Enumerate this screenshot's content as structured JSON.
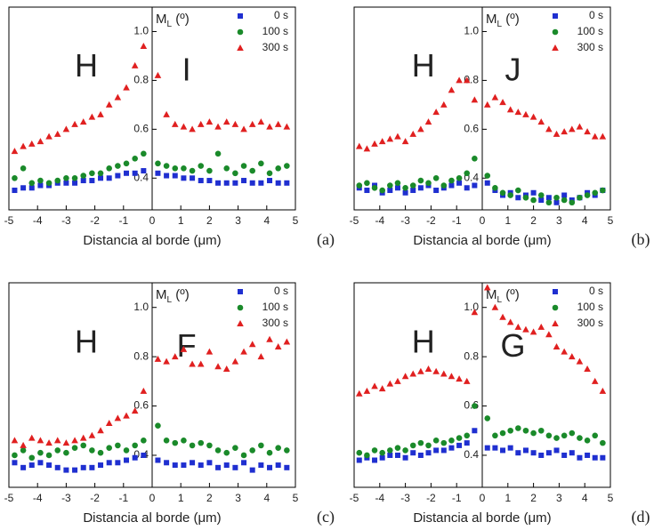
{
  "chart_data": [
    {
      "type": "scatter",
      "panel_label": "(a)",
      "annotations": [
        "H",
        "I"
      ],
      "xlabel": "Distancia al borde (μm)",
      "ylabel": {
        "main": "M",
        "sub": "L",
        "unit": " (º)"
      },
      "xlim": [
        -5,
        5
      ],
      "ylim": [
        0.27,
        1.1
      ],
      "xticks": [
        -5,
        -4,
        -3,
        -2,
        -1,
        0,
        1,
        2,
        3,
        4,
        5
      ],
      "yticks": [
        0.4,
        0.6,
        0.8,
        {
          "value": 1,
          "label": "1.0"
        }
      ],
      "legend": "upper right",
      "x": [
        -4.8,
        -4.5,
        -4.2,
        -3.9,
        -3.6,
        -3.3,
        -3.0,
        -2.7,
        -2.4,
        -2.1,
        -1.8,
        -1.5,
        -1.2,
        -0.9,
        -0.6,
        -0.3,
        0.2,
        0.5,
        0.8,
        1.1,
        1.4,
        1.7,
        2.0,
        2.3,
        2.6,
        2.9,
        3.2,
        3.5,
        3.8,
        4.1,
        4.4,
        4.7
      ],
      "series": [
        {
          "name": "0 s",
          "color": "#1f2fd0",
          "marker": "square",
          "values": [
            0.35,
            0.36,
            0.36,
            0.37,
            0.37,
            0.38,
            0.38,
            0.38,
            0.39,
            0.39,
            0.4,
            0.4,
            0.41,
            0.42,
            0.42,
            0.43,
            0.42,
            0.41,
            0.41,
            0.4,
            0.4,
            0.39,
            0.39,
            0.38,
            0.38,
            0.38,
            0.39,
            0.38,
            0.38,
            0.39,
            0.38,
            0.38
          ]
        },
        {
          "name": "100 s",
          "color": "#1a8a2a",
          "marker": "circle",
          "values": [
            0.4,
            0.44,
            0.38,
            0.39,
            0.38,
            0.39,
            0.4,
            0.4,
            0.41,
            0.42,
            0.42,
            0.44,
            0.45,
            0.46,
            0.48,
            0.5,
            0.46,
            0.45,
            0.44,
            0.44,
            0.43,
            0.45,
            0.43,
            0.5,
            0.44,
            0.42,
            0.45,
            0.43,
            0.46,
            0.42,
            0.44,
            0.45
          ]
        },
        {
          "name": "300 s",
          "color": "#e02020",
          "marker": "triangle",
          "values": [
            0.51,
            0.53,
            0.54,
            0.55,
            0.57,
            0.58,
            0.6,
            0.62,
            0.63,
            0.65,
            0.66,
            0.7,
            0.73,
            0.77,
            0.86,
            0.94,
            0.82,
            0.66,
            0.62,
            0.61,
            0.6,
            0.62,
            0.63,
            0.61,
            0.63,
            0.62,
            0.6,
            0.62,
            0.63,
            0.61,
            0.62,
            0.61
          ]
        }
      ]
    },
    {
      "type": "scatter",
      "panel_label": "(b)",
      "annotations": [
        "H",
        "J"
      ],
      "xlabel": "Distancia al borde (μm)",
      "ylabel": {
        "main": "M",
        "sub": "L",
        "unit": " (º)"
      },
      "xlim": [
        -5,
        5
      ],
      "ylim": [
        0.27,
        1.1
      ],
      "xticks": [
        -5,
        -4,
        -3,
        -2,
        -1,
        0,
        1,
        2,
        3,
        4,
        5
      ],
      "yticks": [
        0.4,
        0.6,
        0.8,
        {
          "value": 1,
          "label": "1.0"
        }
      ],
      "legend": "upper right",
      "x": [
        -4.8,
        -4.5,
        -4.2,
        -3.9,
        -3.6,
        -3.3,
        -3.0,
        -2.7,
        -2.4,
        -2.1,
        -1.8,
        -1.5,
        -1.2,
        -0.9,
        -0.6,
        -0.3,
        0.2,
        0.5,
        0.8,
        1.1,
        1.4,
        1.7,
        2.0,
        2.3,
        2.6,
        2.9,
        3.2,
        3.5,
        3.8,
        4.1,
        4.4,
        4.7
      ],
      "series": [
        {
          "name": "0 s",
          "color": "#1f2fd0",
          "marker": "square",
          "values": [
            0.36,
            0.35,
            0.37,
            0.34,
            0.35,
            0.36,
            0.34,
            0.35,
            0.36,
            0.37,
            0.35,
            0.36,
            0.37,
            0.38,
            0.36,
            0.37,
            0.38,
            0.35,
            0.33,
            0.34,
            0.32,
            0.33,
            0.34,
            0.31,
            0.32,
            0.3,
            0.33,
            0.31,
            0.32,
            0.34,
            0.33,
            0.35
          ]
        },
        {
          "name": "100 s",
          "color": "#1a8a2a",
          "marker": "circle",
          "values": [
            0.37,
            0.38,
            0.36,
            0.35,
            0.37,
            0.38,
            0.36,
            0.37,
            0.39,
            0.38,
            0.4,
            0.37,
            0.39,
            0.4,
            0.42,
            0.48,
            0.41,
            0.36,
            0.34,
            0.33,
            0.35,
            0.32,
            0.31,
            0.33,
            0.3,
            0.32,
            0.31,
            0.3,
            0.32,
            0.33,
            0.34,
            0.35
          ]
        },
        {
          "name": "300 s",
          "color": "#e02020",
          "marker": "triangle",
          "values": [
            0.53,
            0.52,
            0.54,
            0.55,
            0.56,
            0.57,
            0.55,
            0.58,
            0.6,
            0.63,
            0.67,
            0.7,
            0.76,
            0.8,
            0.8,
            0.72,
            0.7,
            0.73,
            0.71,
            0.68,
            0.67,
            0.66,
            0.65,
            0.63,
            0.6,
            0.58,
            0.59,
            0.6,
            0.61,
            0.59,
            0.57,
            0.57
          ]
        }
      ]
    },
    {
      "type": "scatter",
      "panel_label": "(c)",
      "annotations": [
        "H",
        "F"
      ],
      "xlabel": "Distancia al borde (μm)",
      "ylabel": {
        "main": "M",
        "sub": "L",
        "unit": " (º)"
      },
      "xlim": [
        -5,
        5
      ],
      "ylim": [
        0.27,
        1.1
      ],
      "xticks": [
        -5,
        -4,
        -3,
        -2,
        -1,
        0,
        1,
        2,
        3,
        4,
        5
      ],
      "yticks": [
        0.4,
        0.6,
        0.8,
        {
          "value": 1,
          "label": "1.0"
        }
      ],
      "legend": "upper right",
      "x": [
        -4.8,
        -4.5,
        -4.2,
        -3.9,
        -3.6,
        -3.3,
        -3.0,
        -2.7,
        -2.4,
        -2.1,
        -1.8,
        -1.5,
        -1.2,
        -0.9,
        -0.6,
        -0.3,
        0.2,
        0.5,
        0.8,
        1.1,
        1.4,
        1.7,
        2.0,
        2.3,
        2.6,
        2.9,
        3.2,
        3.5,
        3.8,
        4.1,
        4.4,
        4.7
      ],
      "series": [
        {
          "name": "0 s",
          "color": "#1f2fd0",
          "marker": "square",
          "values": [
            0.37,
            0.35,
            0.36,
            0.37,
            0.36,
            0.35,
            0.34,
            0.34,
            0.35,
            0.35,
            0.36,
            0.37,
            0.37,
            0.38,
            0.39,
            0.4,
            0.38,
            0.37,
            0.36,
            0.36,
            0.37,
            0.36,
            0.37,
            0.35,
            0.36,
            0.35,
            0.37,
            0.34,
            0.36,
            0.35,
            0.36,
            0.35
          ]
        },
        {
          "name": "100 s",
          "color": "#1a8a2a",
          "marker": "circle",
          "values": [
            0.4,
            0.42,
            0.39,
            0.41,
            0.4,
            0.42,
            0.41,
            0.43,
            0.44,
            0.42,
            0.41,
            0.43,
            0.44,
            0.42,
            0.44,
            0.46,
            0.52,
            0.46,
            0.45,
            0.46,
            0.44,
            0.45,
            0.44,
            0.42,
            0.41,
            0.43,
            0.4,
            0.42,
            0.44,
            0.41,
            0.43,
            0.42
          ]
        },
        {
          "name": "300 s",
          "color": "#e02020",
          "marker": "triangle",
          "values": [
            0.46,
            0.44,
            0.47,
            0.46,
            0.45,
            0.46,
            0.45,
            0.46,
            0.47,
            0.48,
            0.5,
            0.53,
            0.55,
            0.56,
            0.58,
            0.66,
            0.79,
            0.78,
            0.8,
            0.83,
            0.77,
            0.77,
            0.82,
            0.76,
            0.75,
            0.78,
            0.82,
            0.85,
            0.8,
            0.87,
            0.84,
            0.86
          ]
        }
      ]
    },
    {
      "type": "scatter",
      "panel_label": "(d)",
      "annotations": [
        "H",
        "G"
      ],
      "xlabel": "Distancia al borde (μm)",
      "ylabel": {
        "main": "M",
        "sub": "L",
        "unit": " (º)"
      },
      "xlim": [
        -5,
        5
      ],
      "ylim": [
        0.27,
        1.1
      ],
      "xticks": [
        -5,
        -4,
        -3,
        -2,
        -1,
        0,
        1,
        2,
        3,
        4,
        5
      ],
      "yticks": [
        0.4,
        0.6,
        0.8,
        {
          "value": 1,
          "label": "1.0"
        }
      ],
      "legend": "upper right",
      "x": [
        -4.8,
        -4.5,
        -4.2,
        -3.9,
        -3.6,
        -3.3,
        -3.0,
        -2.7,
        -2.4,
        -2.1,
        -1.8,
        -1.5,
        -1.2,
        -0.9,
        -0.6,
        -0.3,
        0.2,
        0.5,
        0.8,
        1.1,
        1.4,
        1.7,
        2.0,
        2.3,
        2.6,
        2.9,
        3.2,
        3.5,
        3.8,
        4.1,
        4.4,
        4.7
      ],
      "series": [
        {
          "name": "0 s",
          "color": "#1f2fd0",
          "marker": "square",
          "values": [
            0.38,
            0.39,
            0.38,
            0.39,
            0.4,
            0.4,
            0.39,
            0.41,
            0.4,
            0.41,
            0.42,
            0.42,
            0.43,
            0.44,
            0.45,
            0.5,
            0.43,
            0.43,
            0.42,
            0.43,
            0.41,
            0.42,
            0.41,
            0.4,
            0.41,
            0.42,
            0.4,
            0.41,
            0.39,
            0.4,
            0.39,
            0.39
          ]
        },
        {
          "name": "100 s",
          "color": "#1a8a2a",
          "marker": "circle",
          "values": [
            0.41,
            0.4,
            0.42,
            0.41,
            0.42,
            0.43,
            0.42,
            0.44,
            0.45,
            0.44,
            0.46,
            0.45,
            0.46,
            0.47,
            0.48,
            0.6,
            0.55,
            0.48,
            0.49,
            0.5,
            0.51,
            0.5,
            0.49,
            0.5,
            0.48,
            0.47,
            0.48,
            0.49,
            0.47,
            0.46,
            0.48,
            0.45
          ]
        },
        {
          "name": "300 s",
          "color": "#e02020",
          "marker": "triangle",
          "values": [
            0.65,
            0.66,
            0.68,
            0.67,
            0.69,
            0.7,
            0.72,
            0.73,
            0.74,
            0.75,
            0.74,
            0.73,
            0.72,
            0.71,
            0.7,
            0.98,
            1.08,
            1.0,
            0.96,
            0.94,
            0.92,
            0.91,
            0.9,
            0.92,
            0.89,
            0.84,
            0.82,
            0.8,
            0.78,
            0.75,
            0.7,
            0.66
          ]
        }
      ]
    }
  ]
}
